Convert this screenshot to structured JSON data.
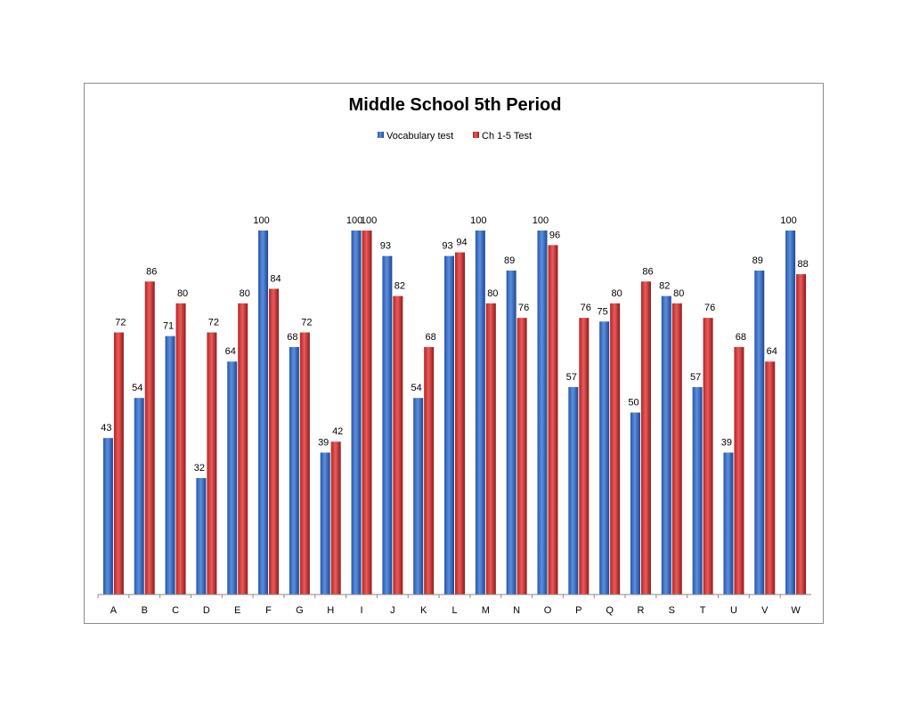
{
  "chart_data": {
    "type": "bar",
    "title": "Middle School 5th Period",
    "xlabel": "",
    "ylabel": "",
    "ylim": [
      0,
      100
    ],
    "grid": false,
    "legend_position": "top-center",
    "categories": [
      "A",
      "B",
      "C",
      "D",
      "E",
      "F",
      "G",
      "H",
      "I",
      "J",
      "K",
      "L",
      "M",
      "N",
      "O",
      "P",
      "Q",
      "R",
      "S",
      "T",
      "U",
      "V",
      "W"
    ],
    "series": [
      {
        "name": "Vocabulary test",
        "color": "#3a6fc4",
        "values": [
          43,
          54,
          71,
          32,
          64,
          100,
          68,
          39,
          100,
          93,
          54,
          93,
          100,
          89,
          100,
          57,
          75,
          50,
          82,
          57,
          39,
          89,
          100
        ]
      },
      {
        "name": "Ch 1-5 Test",
        "color": "#d23a3a",
        "values": [
          72,
          86,
          80,
          72,
          80,
          84,
          72,
          42,
          100,
          82,
          68,
          94,
          80,
          76,
          96,
          76,
          80,
          86,
          80,
          76,
          68,
          64,
          88
        ]
      }
    ]
  }
}
